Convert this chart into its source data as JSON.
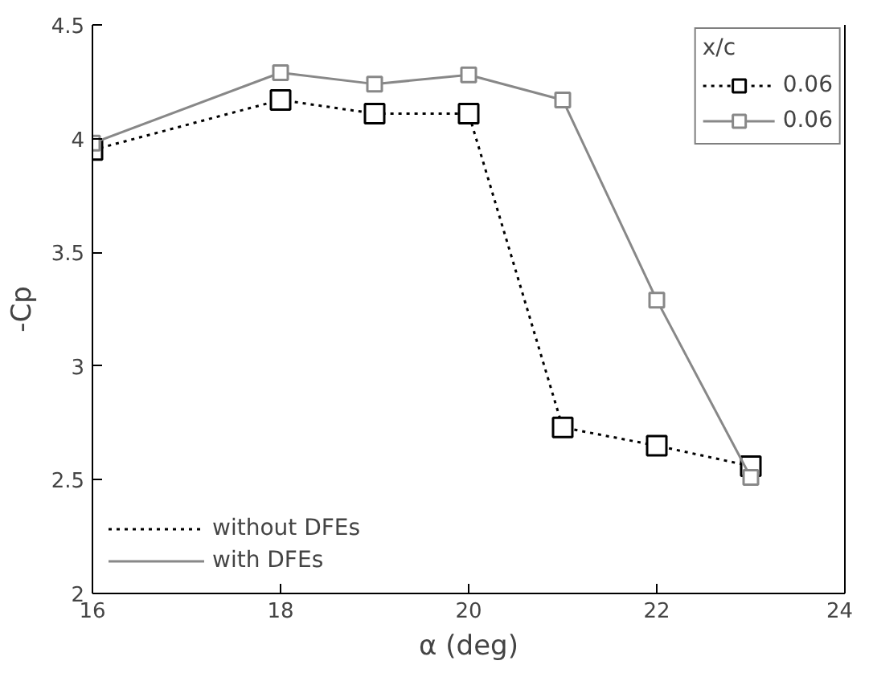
{
  "chart_data": {
    "type": "line",
    "xlabel": "α (deg)",
    "ylabel": "-Cp",
    "legend_title": "x/c",
    "x": [
      16,
      18,
      19,
      20,
      21,
      22,
      23
    ],
    "series": [
      {
        "name": "0.06",
        "color": "#000000",
        "line_style": "dotted",
        "values": [
          3.95,
          4.17,
          4.11,
          4.11,
          2.73,
          2.65,
          2.56
        ]
      },
      {
        "name": "0.06",
        "color": "#888888",
        "line_style": "solid",
        "values": [
          3.98,
          4.29,
          4.24,
          4.28,
          4.17,
          3.29,
          2.51
        ]
      }
    ],
    "xlim": [
      16,
      24
    ],
    "ylim": [
      2,
      4.5
    ],
    "xticks": [
      16,
      18,
      20,
      22,
      24
    ],
    "yticks": [
      2,
      2.5,
      3,
      3.5,
      4,
      4.5
    ],
    "marker": "square",
    "grid": false,
    "legend": "top right",
    "annotations": [
      "without DFEs",
      "with DFEs"
    ]
  }
}
